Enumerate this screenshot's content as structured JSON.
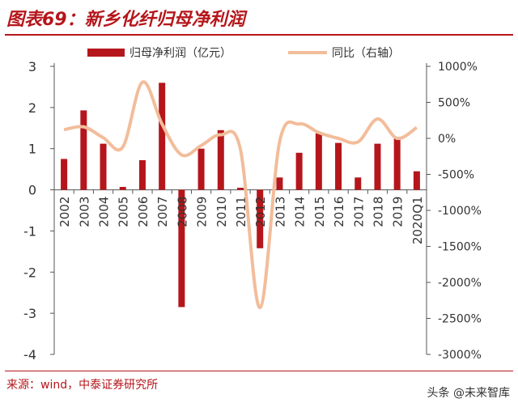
{
  "header": {
    "title": "图表69：新乡化纤归母净利润"
  },
  "footer": {
    "source": "来源：wind，中泰证券研究所",
    "watermark": "头条 @未来智库"
  },
  "chart_data": {
    "type": "bar+line",
    "categories": [
      "2002",
      "2003",
      "2004",
      "2005",
      "2006",
      "2007",
      "2008",
      "2009",
      "2010",
      "2011",
      "2012",
      "2013",
      "2014",
      "2015",
      "2016",
      "2017",
      "2018",
      "2019",
      "2020Q1"
    ],
    "series": [
      {
        "name": "归母净利润（亿元）",
        "type": "bar",
        "axis": "left",
        "color": "#b5161b",
        "values": [
          0.75,
          1.93,
          1.12,
          0.07,
          0.72,
          2.6,
          -2.85,
          1.0,
          1.45,
          0.05,
          -1.42,
          0.3,
          0.9,
          1.37,
          1.14,
          0.3,
          1.12,
          1.27,
          0.45
        ]
      },
      {
        "name": "同比（右轴）",
        "type": "line",
        "axis": "right",
        "color": "#f2bd9b",
        "values": [
          120,
          160,
          10,
          -120,
          780,
          200,
          -230,
          -100,
          50,
          -150,
          -2350,
          -50,
          200,
          80,
          0,
          -50,
          270,
          0,
          150
        ]
      }
    ],
    "y_left": {
      "ylim": [
        -4,
        3
      ],
      "ticks": [
        3,
        2,
        1,
        0,
        -1,
        -2,
        -3,
        -4
      ]
    },
    "y_right": {
      "ylim": [
        -3000,
        1000
      ],
      "ticks": [
        "1000%",
        "500%",
        "0%",
        "-500%",
        "-1000%",
        "-1500%",
        "-2000%",
        "-2500%",
        "-3000%"
      ]
    },
    "legend": {
      "position": "top"
    },
    "grid": false
  }
}
